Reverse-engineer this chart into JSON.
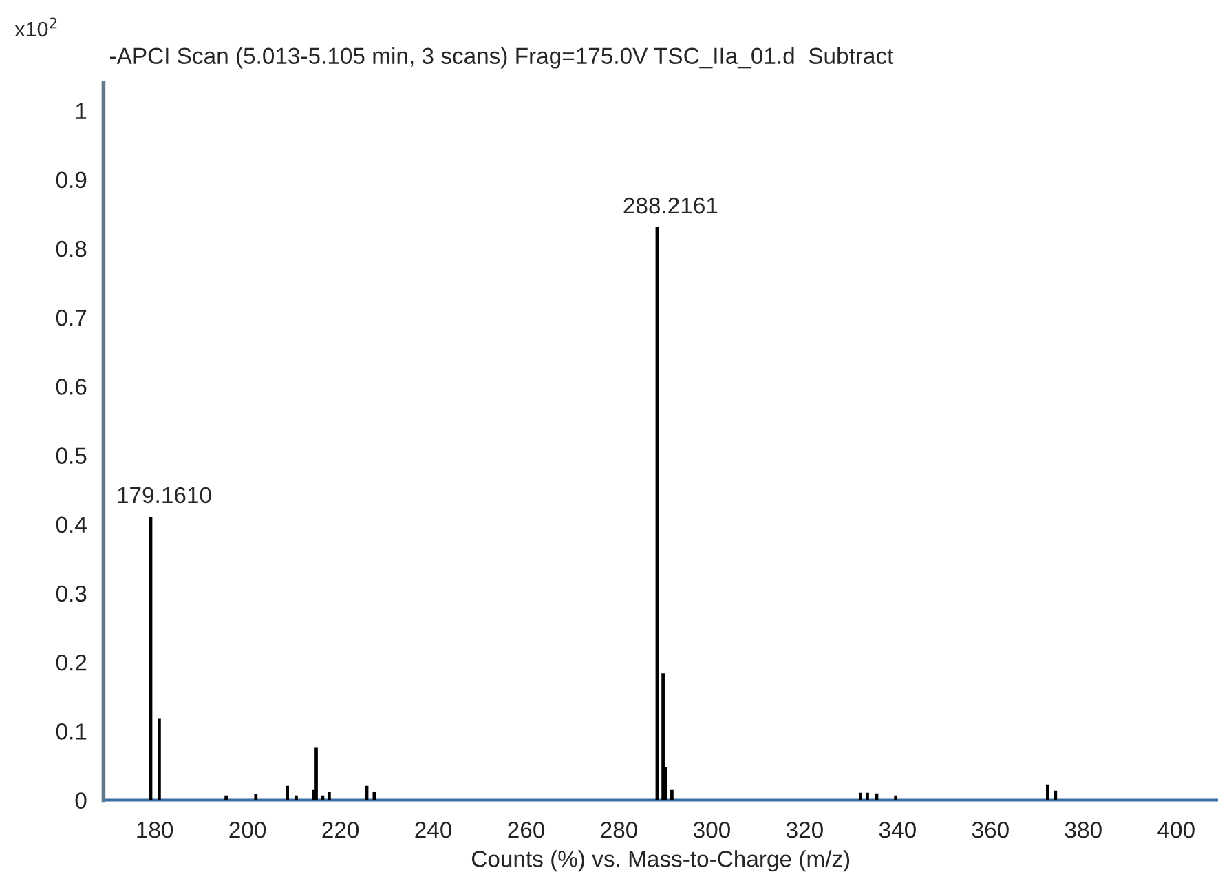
{
  "chart_data": {
    "type": "bar",
    "title": "-APCI Scan (5.013-5.105 min, 3 scans) Frag=175.0V TSC_IIa_01.d  Subtract",
    "xlabel": "Counts (%) vs. Mass-to-Charge (m/z)",
    "annotations": [
      "x10$^{2}$",
      {
        "text": "179.1610",
        "x": 179.161,
        "y": 0.41
      },
      {
        "text": "288.2161",
        "x": 288.2161,
        "y": 0.83
      }
    ],
    "x": [
      179.161,
      181.0,
      195.4,
      201.8,
      208.6,
      210.5,
      214.3,
      214.8,
      216.2,
      217.6,
      225.7,
      227.3,
      288.2161,
      289.5,
      290.1,
      291.4,
      332.0,
      333.5,
      335.5,
      339.6,
      372.3,
      374.0
    ],
    "values": [
      0.41,
      0.118,
      0.006,
      0.008,
      0.02,
      0.006,
      0.014,
      0.075,
      0.006,
      0.011,
      0.02,
      0.011,
      0.83,
      0.183,
      0.047,
      0.014,
      0.01,
      0.01,
      0.009,
      0.006,
      0.022,
      0.013
    ],
    "color": "#000000",
    "xlim": [
      169,
      409
    ],
    "xticks": [
      180,
      200,
      220,
      240,
      260,
      280,
      300,
      320,
      340,
      360,
      380,
      400
    ],
    "ylim": [
      0,
      1.04
    ],
    "yticks": [
      0,
      0.1,
      0.2,
      0.3,
      0.4,
      0.5,
      0.6,
      0.7,
      0.8,
      0.9,
      1
    ],
    "grid": false,
    "legend": false
  }
}
